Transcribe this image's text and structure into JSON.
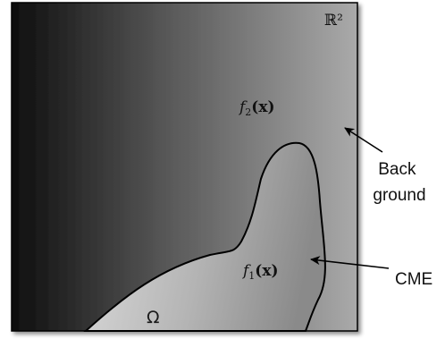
{
  "diagram": {
    "space_label": "ℝ²",
    "background_function": {
      "symbol": "f",
      "subscript": "2",
      "argument": "(x)"
    },
    "cme_function": {
      "symbol": "f",
      "subscript": "1",
      "argument": "(x)"
    },
    "domain_label": "Ω",
    "callouts": {
      "background": {
        "line1": "Back",
        "line2": "ground"
      },
      "cme": "CME"
    },
    "colors": {
      "square_gradient_left": "#111111",
      "square_gradient_right": "#a8a8a8",
      "region_gradient_left": "#e0e0e0",
      "region_gradient_right": "#888888",
      "stroke": "#000000"
    }
  }
}
